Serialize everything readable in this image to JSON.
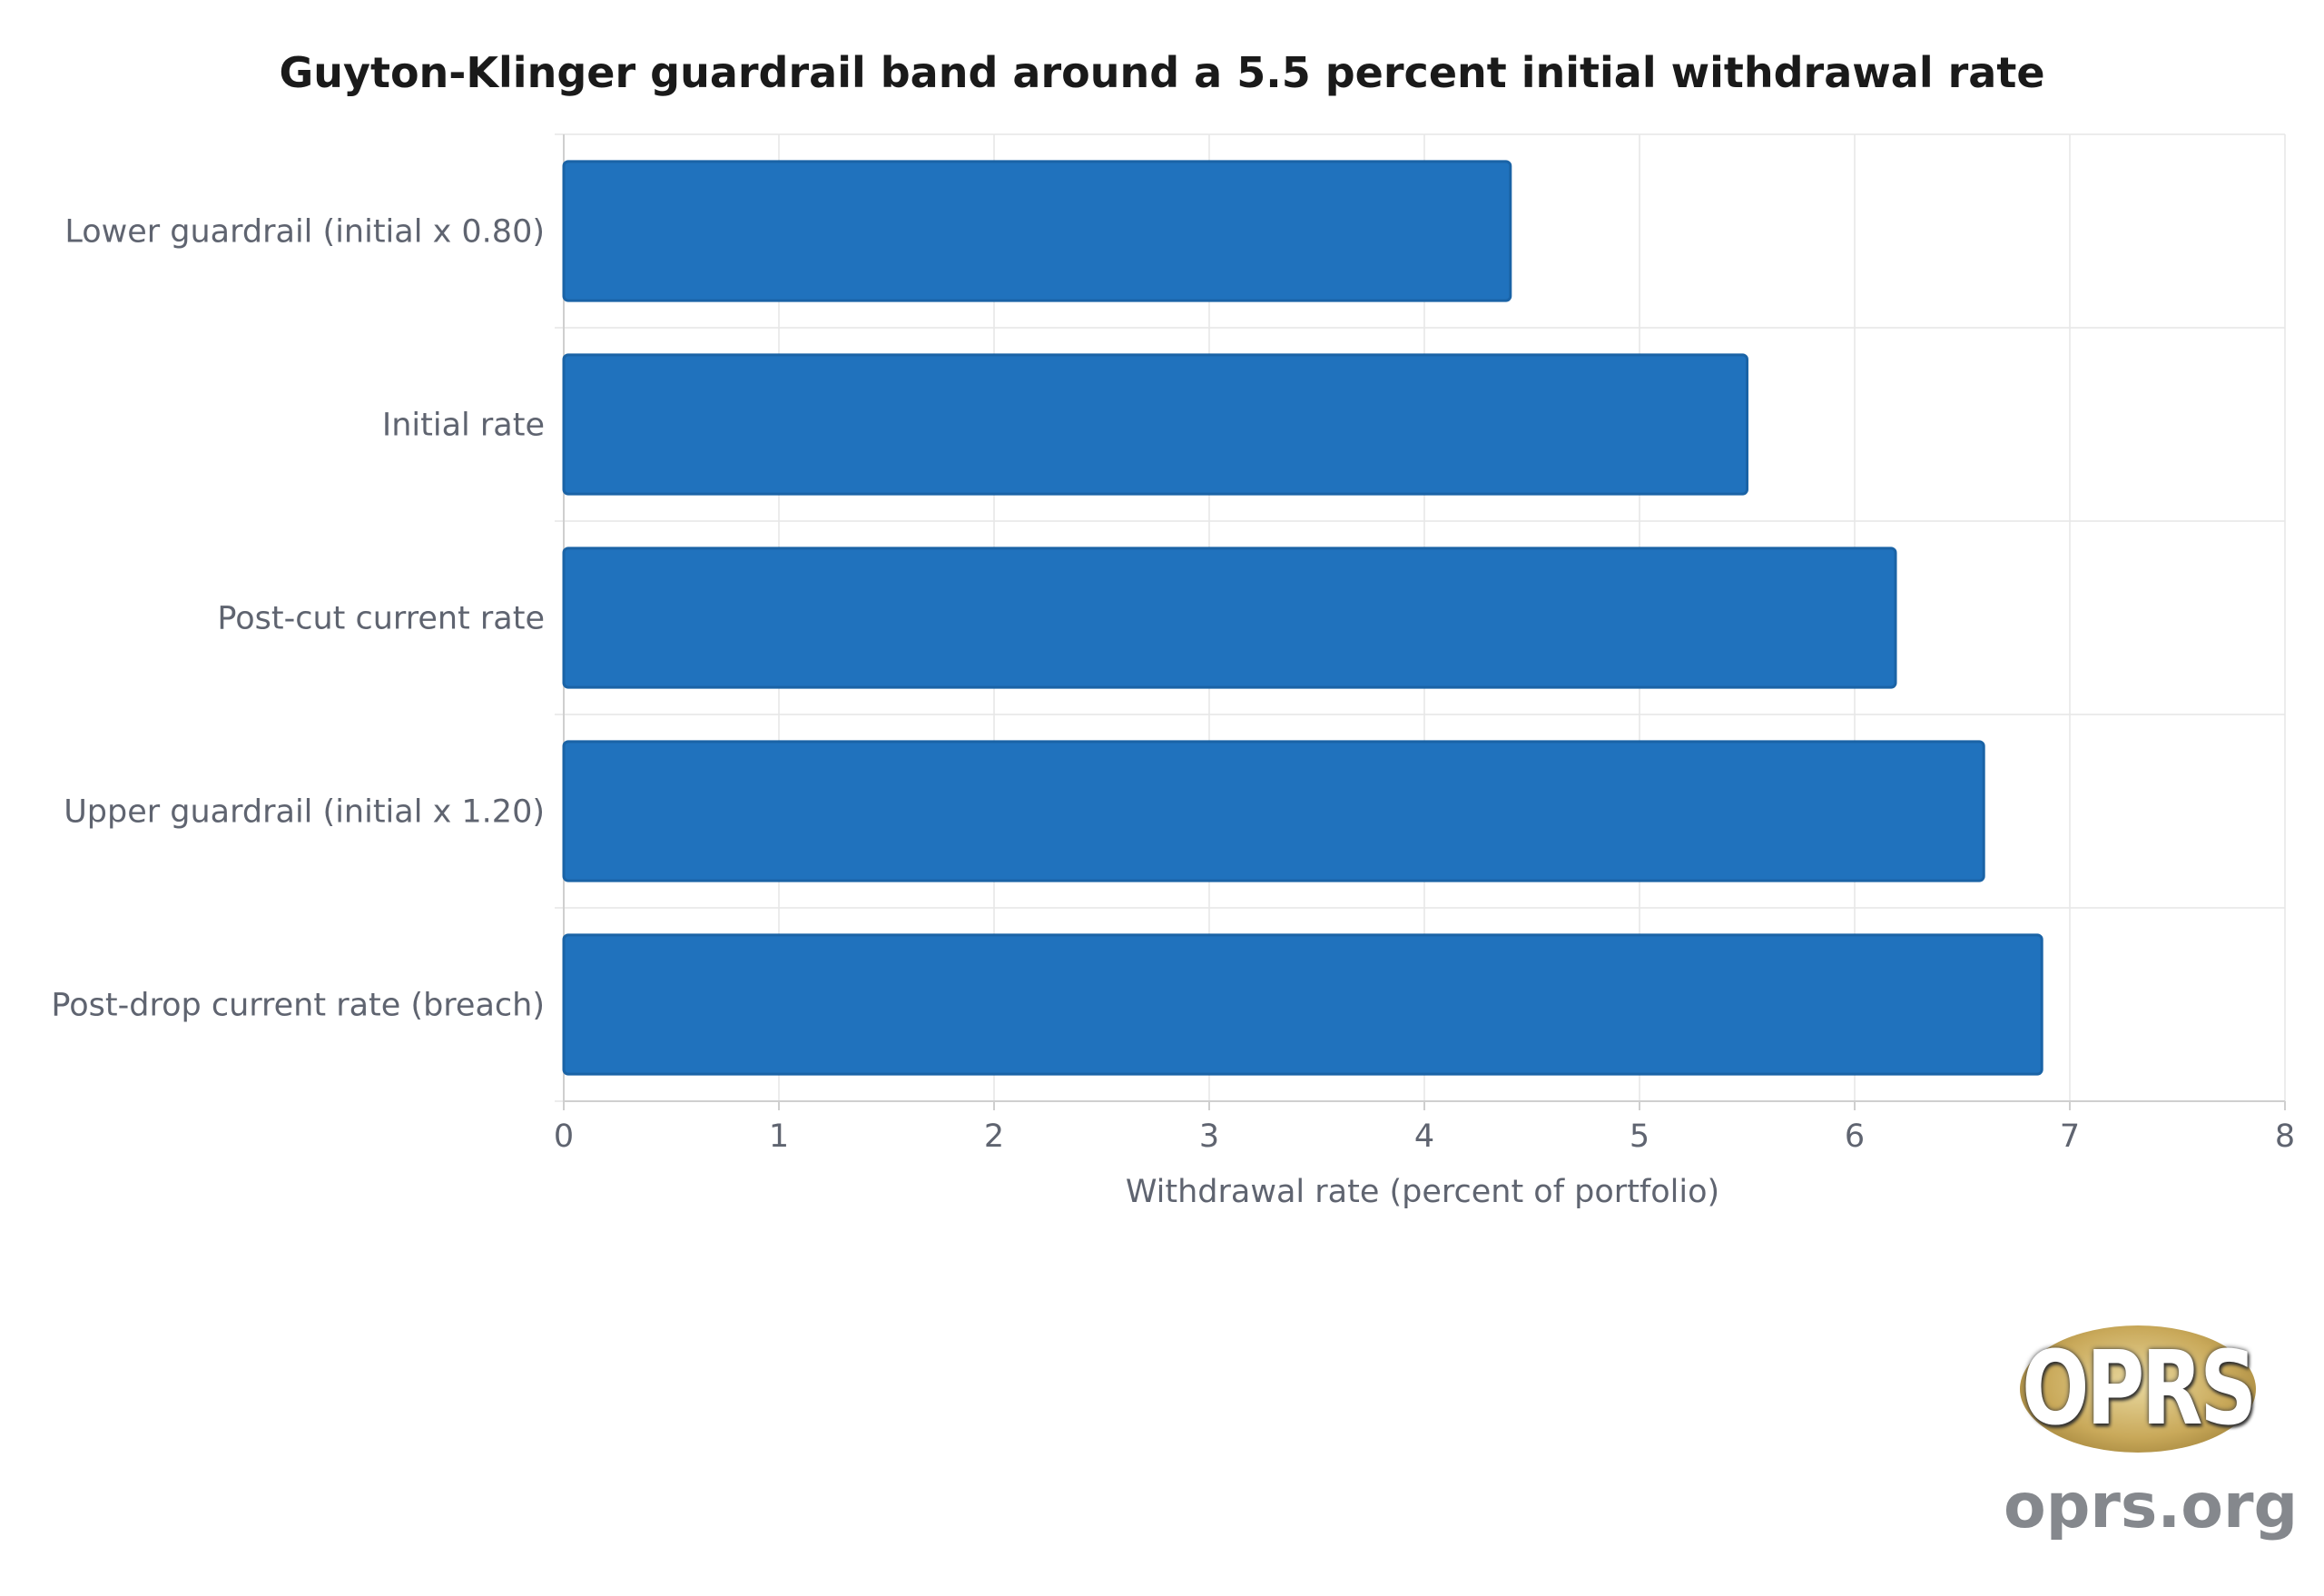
{
  "chart_data": {
    "type": "bar",
    "orientation": "horizontal",
    "title": "Guyton-Klinger guardrail band around a 5.5 percent initial withdrawal rate",
    "xlabel": "Withdrawal rate (percent of portfolio)",
    "ylabel": "",
    "categories": [
      "Lower guardrail (initial x 0.80)",
      "Initial rate",
      "Post-cut current rate",
      "Upper guardrail (initial x 1.20)",
      "Post-drop current rate (breach)"
    ],
    "values": [
      4.4,
      5.5,
      6.19,
      6.6,
      6.87
    ],
    "xlim": [
      0,
      8
    ],
    "xticks": [
      "0",
      "1",
      "2",
      "3",
      "4",
      "5",
      "6",
      "7",
      "8"
    ],
    "grid": true,
    "bar_color": "#2072bd"
  },
  "logo": {
    "word": "OPRS",
    "url": "oprs.org"
  }
}
